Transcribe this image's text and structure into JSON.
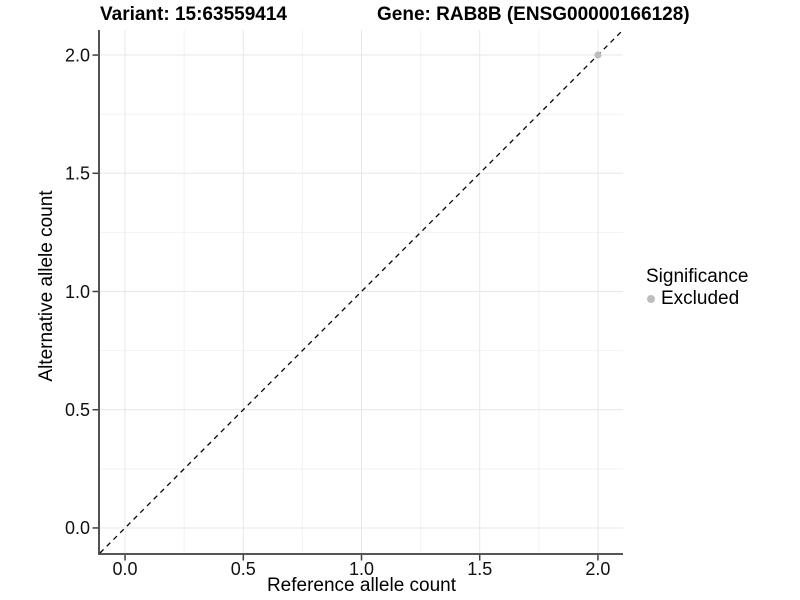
{
  "header": {
    "variant_title": "Variant: 15:63559414",
    "gene_title": "Gene: RAB8B (ENSG00000166128)"
  },
  "legend": {
    "title": "Significance",
    "items": [
      {
        "label": "Excluded",
        "color": "#bebebe"
      }
    ]
  },
  "chart_data": {
    "type": "scatter",
    "title_left": "Variant: 15:63559414",
    "title_right": "Gene: RAB8B (ENSG00000166128)",
    "xlabel": "Reference allele count",
    "ylabel": "Alternative allele count",
    "xlim": [
      -0.106,
      2.106
    ],
    "ylim": [
      -0.106,
      2.106
    ],
    "x_ticks": {
      "values": [
        0,
        0.5,
        1,
        1.5,
        2
      ],
      "labels": [
        "0.0",
        "0.5",
        "1.0",
        "1.5",
        "2.0"
      ]
    },
    "y_ticks": {
      "values": [
        0,
        0.5,
        1,
        1.5,
        2
      ],
      "labels": [
        "0.0",
        "0.5",
        "1.0",
        "1.5",
        "2.0"
      ]
    },
    "points": [
      {
        "x": 2.0,
        "y": 2.0,
        "series": "Excluded",
        "color": "#bebebe"
      }
    ],
    "reference_line": {
      "slope": 1,
      "intercept": 0,
      "style": "dashed",
      "color": "#000000"
    },
    "grid": {
      "major_color": "#e7e7e7",
      "minor_color": "#f2f2f2"
    },
    "axis_color": "#3f3f3f",
    "legend_position": "right",
    "point_radius": 3.5
  }
}
